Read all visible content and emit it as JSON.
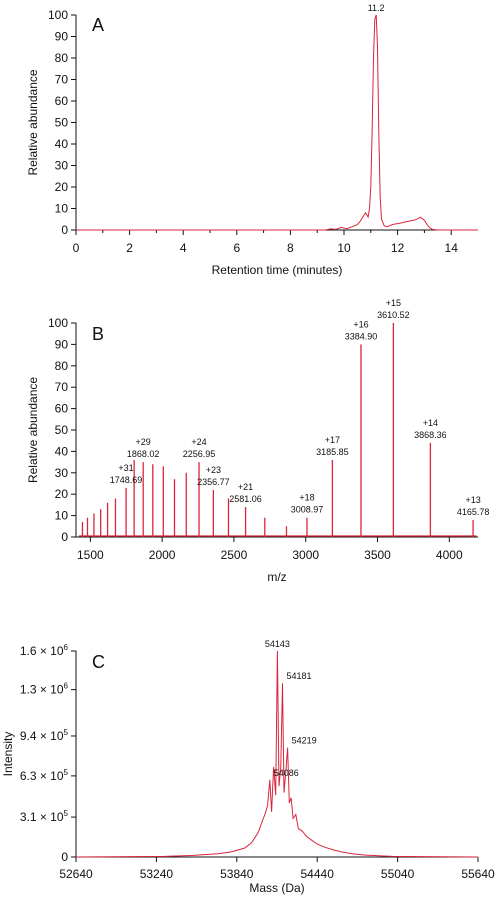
{
  "chart_data": [
    {
      "type": "line",
      "panel_label": "A",
      "xlabel": "Retention time (minutes)",
      "ylabel": "Relative abundance",
      "xlim": [
        0,
        15
      ],
      "ylim": [
        0,
        100
      ],
      "x_ticks": [
        0,
        2,
        4,
        6,
        8,
        10,
        12,
        14
      ],
      "y_ticks": [
        0,
        10,
        20,
        30,
        40,
        50,
        60,
        70,
        80,
        90,
        100
      ],
      "series": [
        {
          "x": [
            0,
            9.3,
            9.5,
            9.7,
            9.9,
            10.1,
            10.3,
            10.5,
            10.6,
            10.7,
            10.8,
            10.85,
            10.9,
            10.95,
            11.0,
            11.05,
            11.1,
            11.15,
            11.2,
            11.25,
            11.3,
            11.35,
            11.4,
            11.5,
            11.6,
            11.7,
            11.8,
            11.9,
            12.0,
            12.1,
            12.2,
            12.3,
            12.4,
            12.5,
            12.6,
            12.7,
            12.8,
            12.85,
            12.9,
            13.0,
            13.1,
            13.2,
            13.3,
            13.5,
            15
          ],
          "y": [
            0,
            0,
            0.5,
            0.3,
            1.2,
            0.6,
            1.5,
            2.5,
            4.0,
            6.0,
            8.0,
            7.0,
            6.0,
            10.0,
            20.0,
            45.0,
            80.0,
            98.0,
            100.0,
            85.0,
            45.0,
            15.0,
            5.0,
            2.0,
            1.5,
            2.0,
            2.5,
            2.8,
            3.0,
            3.2,
            3.5,
            3.8,
            4.0,
            4.3,
            4.5,
            5.0,
            5.5,
            6.0,
            5.5,
            4.5,
            2.5,
            1.0,
            0.3,
            0,
            0
          ]
        }
      ],
      "annotations": [
        {
          "text": "11.2",
          "x": 11.2,
          "y": 100
        }
      ]
    },
    {
      "type": "bar",
      "panel_label": "B",
      "xlabel": "m/z",
      "ylabel": "Relative abundance",
      "xlim": [
        1400,
        4200
      ],
      "ylim": [
        0,
        100
      ],
      "x_ticks": [
        1500,
        2000,
        2500,
        3000,
        3500,
        4000
      ],
      "y_ticks": [
        0,
        10,
        20,
        30,
        40,
        50,
        60,
        70,
        80,
        90,
        100
      ],
      "peaks": [
        {
          "x": 1445,
          "y": 7
        },
        {
          "x": 1480,
          "y": 9
        },
        {
          "x": 1525,
          "y": 11
        },
        {
          "x": 1572,
          "y": 13
        },
        {
          "x": 1620,
          "y": 16
        },
        {
          "x": 1675,
          "y": 18
        },
        {
          "x": 1748.69,
          "y": 23
        },
        {
          "x": 1805,
          "y": 36
        },
        {
          "x": 1868.02,
          "y": 35
        },
        {
          "x": 1935,
          "y": 34
        },
        {
          "x": 2008,
          "y": 33
        },
        {
          "x": 2086,
          "y": 27
        },
        {
          "x": 2168,
          "y": 30
        },
        {
          "x": 2256.95,
          "y": 35
        },
        {
          "x": 2356.77,
          "y": 22
        },
        {
          "x": 2462,
          "y": 18
        },
        {
          "x": 2581.06,
          "y": 14
        },
        {
          "x": 2715,
          "y": 9
        },
        {
          "x": 2866,
          "y": 5
        },
        {
          "x": 3008.97,
          "y": 9
        },
        {
          "x": 3185.85,
          "y": 36
        },
        {
          "x": 3384.9,
          "y": 90
        },
        {
          "x": 3610.52,
          "y": 100
        },
        {
          "x": 3868.36,
          "y": 44
        },
        {
          "x": 4165.78,
          "y": 8
        }
      ],
      "annotations": [
        {
          "charge": "+31",
          "mz": "1748.69",
          "x": 1748.69,
          "y": 23
        },
        {
          "charge": "+29",
          "mz": "1868.02",
          "x": 1868.02,
          "y": 35
        },
        {
          "charge": "+24",
          "mz": "2256.95",
          "x": 2256.95,
          "y": 35
        },
        {
          "charge": "+23",
          "mz": "2356.77",
          "x": 2356.77,
          "y": 22
        },
        {
          "charge": "+21",
          "mz": "2581.06",
          "x": 2581.06,
          "y": 14
        },
        {
          "charge": "+18",
          "mz": "3008.97",
          "x": 3008.97,
          "y": 9
        },
        {
          "charge": "+17",
          "mz": "3185.85",
          "x": 3185.85,
          "y": 36
        },
        {
          "charge": "+16",
          "mz": "3384.90",
          "x": 3384.9,
          "y": 90
        },
        {
          "charge": "+15",
          "mz": "3610.52",
          "x": 3610.52,
          "y": 100
        },
        {
          "charge": "+14",
          "mz": "3868.36",
          "x": 3868.36,
          "y": 44
        },
        {
          "charge": "+13",
          "mz": "4165.78",
          "x": 4165.78,
          "y": 8
        }
      ]
    },
    {
      "type": "line",
      "panel_label": "C",
      "xlabel": "Mass (Da)",
      "ylabel": "Intensity",
      "xlim": [
        52640,
        55640
      ],
      "ylim": [
        0,
        1600000
      ],
      "x_ticks": [
        52640,
        53240,
        53840,
        54440,
        55040,
        55640
      ],
      "y_ticks": [
        {
          "value": 0,
          "mantissa": "0",
          "exp": ""
        },
        {
          "value": 310000,
          "mantissa": "3.1 × 10",
          "exp": "5"
        },
        {
          "value": 630000,
          "mantissa": "6.3 × 10",
          "exp": "5"
        },
        {
          "value": 940000,
          "mantissa": "9.4 × 10",
          "exp": "5"
        },
        {
          "value": 1300000,
          "mantissa": "1.3 × 10",
          "exp": "6"
        },
        {
          "value": 1600000,
          "mantissa": "1.6 × 10",
          "exp": "6"
        }
      ],
      "series": [
        {
          "x": [
            52640,
            53300,
            53500,
            53700,
            53800,
            53900,
            53950,
            54000,
            54030,
            54050,
            54070,
            54086,
            54100,
            54115,
            54130,
            54143,
            54155,
            54168,
            54181,
            54192,
            54205,
            54219,
            54232,
            54245,
            54260,
            54280,
            54300,
            54330,
            54360,
            54400,
            54440,
            54500,
            54560,
            54620,
            54700,
            54800,
            55000,
            55640
          ],
          "y": [
            0,
            5000,
            12000,
            25000,
            40000,
            70000,
            110000,
            190000,
            280000,
            330000,
            400000,
            600000,
            350000,
            700000,
            480000,
            1600000,
            550000,
            700000,
            1350000,
            500000,
            650000,
            850000,
            420000,
            460000,
            300000,
            330000,
            220000,
            200000,
            160000,
            130000,
            100000,
            75000,
            55000,
            40000,
            25000,
            15000,
            5000,
            0
          ]
        }
      ],
      "annotations": [
        {
          "text": "54143",
          "x": 54143,
          "y": 1600000
        },
        {
          "text": "54181",
          "x": 54181,
          "y": 1350000
        },
        {
          "text": "54219",
          "x": 54219,
          "y": 850000
        },
        {
          "text": "54086",
          "x": 54086,
          "y": 600000
        }
      ]
    }
  ]
}
